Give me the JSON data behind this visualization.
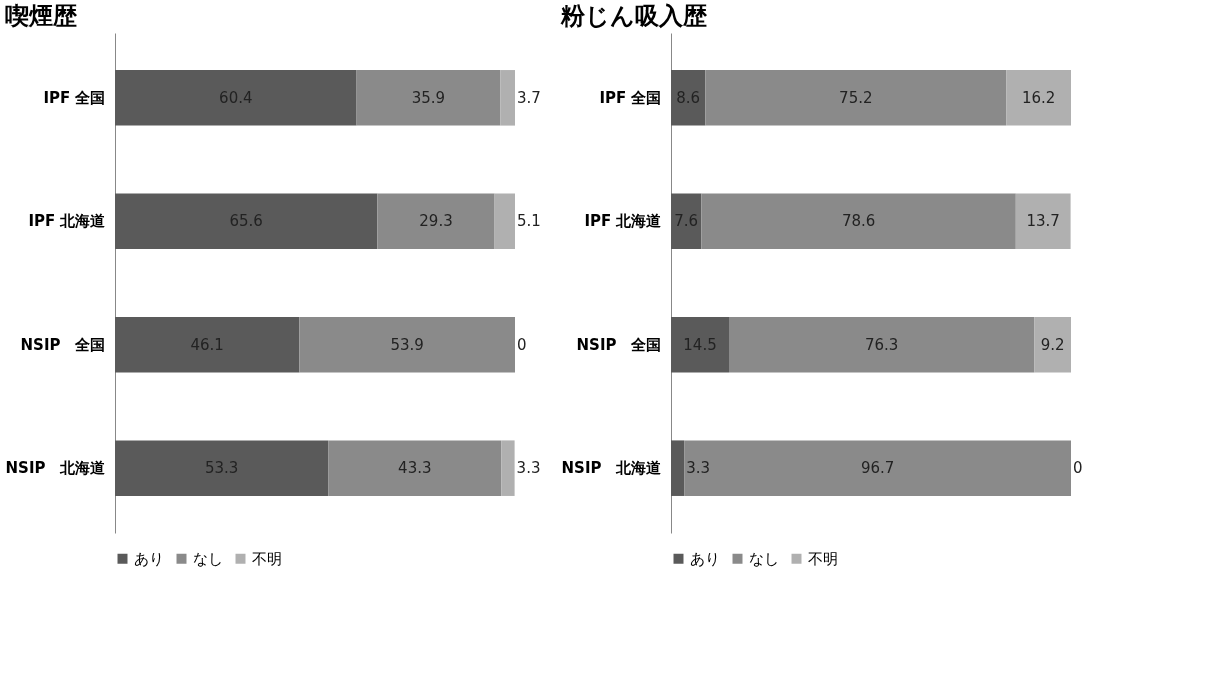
{
  "chart_data": [
    {
      "type": "bar",
      "title": "喫煙歴",
      "orientation": "horizontal",
      "stacked": true,
      "data_labels": true,
      "legend": "bottom",
      "categories": [
        "IPF 全国",
        "IPF 北海道",
        "NSIP　全国",
        "NSIP　北海道"
      ],
      "series": [
        {
          "name": "あり",
          "color": "#5a5a5a",
          "values": [
            60.4,
            65.6,
            46.1,
            53.3
          ]
        },
        {
          "name": "なし",
          "color": "#8a8a8a",
          "values": [
            35.9,
            29.3,
            53.9,
            43.3
          ]
        },
        {
          "name": "不明",
          "color": "#b0b0b0",
          "values": [
            3.7,
            5.1,
            0,
            3.3
          ]
        }
      ]
    },
    {
      "type": "bar",
      "title": "粉じん吸入歴",
      "orientation": "horizontal",
      "stacked": true,
      "data_labels": true,
      "legend": "bottom",
      "categories": [
        "IPF 全国",
        "IPF 北海道",
        "NSIP　全国",
        "NSIP　北海道"
      ],
      "series": [
        {
          "name": "あり",
          "color": "#5a5a5a",
          "values": [
            8.6,
            7.6,
            14.5,
            3.3
          ]
        },
        {
          "name": "なし",
          "color": "#8a8a8a",
          "values": [
            75.2,
            78.6,
            76.3,
            96.7
          ]
        },
        {
          "name": "不明",
          "color": "#b0b0b0",
          "values": [
            16.2,
            13.7,
            9.2,
            0
          ]
        }
      ]
    }
  ]
}
